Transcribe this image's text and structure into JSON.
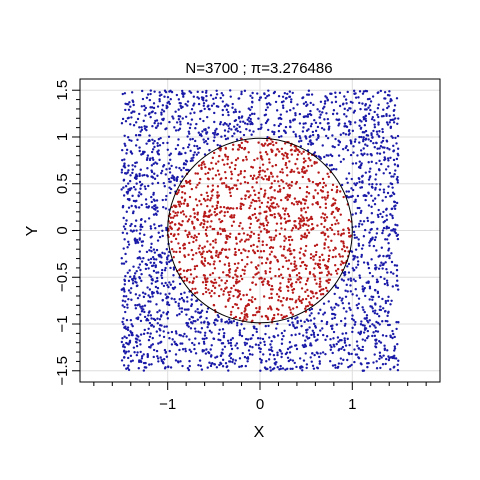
{
  "chart_data": {
    "type": "scatter",
    "title": "N=3700 ; π=3.276486",
    "xlabel": "X",
    "ylabel": "Y",
    "xlim": [
      -1.95,
      1.95
    ],
    "ylim": [
      -1.62,
      1.62
    ],
    "x_ticks": [
      -1,
      0,
      1
    ],
    "x_tick_labels": [
      "−1",
      "0",
      "1"
    ],
    "y_ticks": [
      -1.5,
      -1,
      -0.5,
      0,
      0.5,
      1,
      1.5
    ],
    "y_tick_labels": [
      "−1.5",
      "−1",
      "−0.5",
      "0",
      "0.5",
      "1",
      "1.5"
    ],
    "grid": true,
    "sampling_square": {
      "x": [
        -1.5,
        1.5
      ],
      "y": [
        -1.5,
        1.5
      ]
    },
    "circle": {
      "center": [
        0,
        0
      ],
      "radius": 1
    },
    "n_points": 3700,
    "series": [
      {
        "color": "#1a1aa8"
      },
      {
        "color": "#b81a1a"
      }
    ],
    "grid_color": "#dddddd",
    "axis_color": "#000000"
  }
}
